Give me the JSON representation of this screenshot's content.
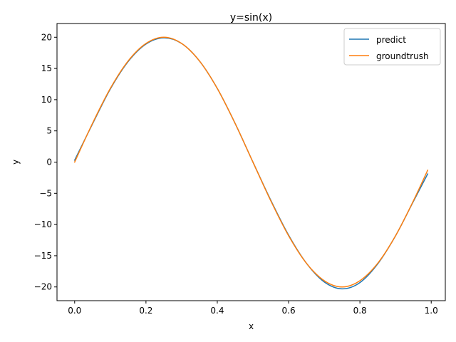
{
  "chart_data": {
    "type": "line",
    "title": "y=sin(x)",
    "xlabel": "x",
    "ylabel": "y",
    "xlim": [
      -0.0495,
      1.0395
    ],
    "ylim": [
      -22.2,
      22.2
    ],
    "xticks": [
      0.0,
      0.2,
      0.4,
      0.6,
      0.8,
      1.0
    ],
    "xtick_labels": [
      "0.0",
      "0.2",
      "0.4",
      "0.6",
      "0.8",
      "1.0"
    ],
    "yticks": [
      -20,
      -15,
      -10,
      -5,
      0,
      5,
      10,
      15,
      20
    ],
    "ytick_labels": [
      "−20",
      "−15",
      "−10",
      "−5",
      "0",
      "5",
      "10",
      "15",
      "20"
    ],
    "grid": false,
    "legend_position": "top-right",
    "series": [
      {
        "name": "predict",
        "color": "#1f77b4",
        "x": [
          0.0,
          0.05,
          0.1,
          0.15,
          0.2,
          0.25,
          0.3,
          0.35,
          0.4,
          0.45,
          0.5,
          0.55,
          0.6,
          0.65,
          0.7,
          0.75,
          0.8,
          0.85,
          0.9,
          0.95,
          0.99
        ],
        "y": [
          0.3,
          6.1,
          11.7,
          16.1,
          18.9,
          19.9,
          19.0,
          16.2,
          11.8,
          6.2,
          0.0,
          -6.1,
          -11.7,
          -16.2,
          -19.2,
          -20.3,
          -19.3,
          -16.3,
          -11.8,
          -6.3,
          -1.9
        ]
      },
      {
        "name": "groundtrush",
        "color": "#ff7f0e",
        "x": [
          0.0,
          0.05,
          0.1,
          0.15,
          0.2,
          0.25,
          0.3,
          0.35,
          0.4,
          0.45,
          0.5,
          0.55,
          0.6,
          0.65,
          0.7,
          0.75,
          0.8,
          0.85,
          0.9,
          0.95,
          0.99
        ],
        "y": [
          0.0,
          6.2,
          11.8,
          16.2,
          19.0,
          20.0,
          19.0,
          16.2,
          11.8,
          6.2,
          0.0,
          -6.2,
          -11.8,
          -16.2,
          -19.0,
          -20.0,
          -19.0,
          -16.2,
          -11.8,
          -6.2,
          -1.3
        ]
      }
    ]
  }
}
